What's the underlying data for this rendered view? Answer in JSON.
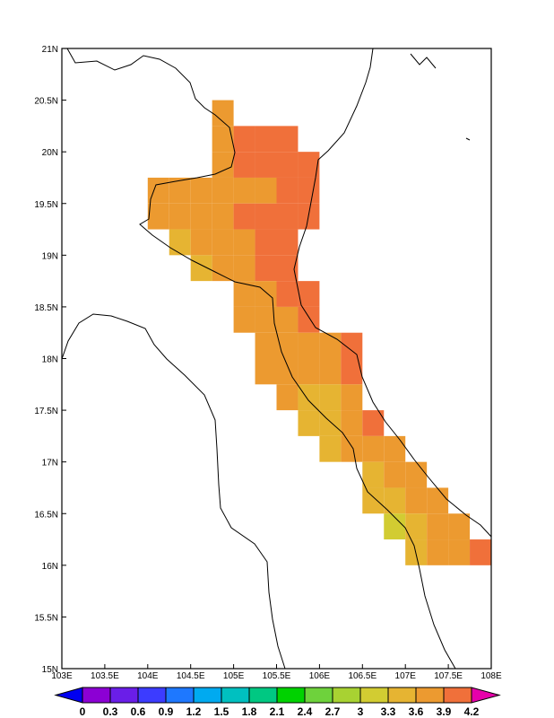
{
  "chart_data": {
    "type": "grid-map",
    "xlim": [
      103,
      108
    ],
    "ylim": [
      15,
      21
    ],
    "xticks": [
      {
        "value": 103,
        "label": "103E"
      },
      {
        "value": 103.5,
        "label": "103.5E"
      },
      {
        "value": 104,
        "label": "104E"
      },
      {
        "value": 104.5,
        "label": "104.5E"
      },
      {
        "value": 105,
        "label": "105E"
      },
      {
        "value": 105.5,
        "label": "105.5E"
      },
      {
        "value": 106,
        "label": "106E"
      },
      {
        "value": 106.5,
        "label": "106.5E"
      },
      {
        "value": 107,
        "label": "107E"
      },
      {
        "value": 107.5,
        "label": "107.5E"
      },
      {
        "value": 108,
        "label": "108E"
      }
    ],
    "yticks": [
      {
        "value": 15,
        "label": "15N"
      },
      {
        "value": 15.5,
        "label": "15.5N"
      },
      {
        "value": 16,
        "label": "16N"
      },
      {
        "value": 16.5,
        "label": "16.5N"
      },
      {
        "value": 17,
        "label": "17N"
      },
      {
        "value": 17.5,
        "label": "17.5N"
      },
      {
        "value": 18,
        "label": "18N"
      },
      {
        "value": 18.5,
        "label": "18.5N"
      },
      {
        "value": 19,
        "label": "19N"
      },
      {
        "value": 19.5,
        "label": "19.5N"
      },
      {
        "value": 20,
        "label": "20N"
      },
      {
        "value": 20.5,
        "label": "20.5N"
      },
      {
        "value": 21,
        "label": "21N"
      }
    ],
    "rows": [
      {
        "lat": 20.25,
        "lons": [
          104.75
        ],
        "values": [
          3.75
        ]
      },
      {
        "lat": 20.0,
        "lons": [
          104.75,
          105,
          105.25,
          105.5
        ],
        "values": [
          3.75,
          4.05,
          4.05,
          4.05
        ]
      },
      {
        "lat": 19.75,
        "lons": [
          104.75,
          105,
          105.25,
          105.5,
          105.75
        ],
        "values": [
          3.75,
          4.05,
          4.05,
          4.05,
          4.05
        ]
      },
      {
        "lat": 19.5,
        "lons": [
          104,
          104.25,
          104.5,
          104.75,
          105,
          105.25,
          105.5,
          105.75
        ],
        "values": [
          3.75,
          3.75,
          3.75,
          3.75,
          3.75,
          3.75,
          4.05,
          4.05
        ]
      },
      {
        "lat": 19.25,
        "lons": [
          104,
          104.25,
          104.5,
          104.75,
          105,
          105.25,
          105.5,
          105.75
        ],
        "values": [
          3.75,
          3.75,
          3.75,
          3.75,
          4.05,
          4.05,
          4.05,
          4.05
        ]
      },
      {
        "lat": 19.0,
        "lons": [
          104.25,
          104.5,
          104.75,
          105,
          105.25,
          105.5
        ],
        "values": [
          3.45,
          3.75,
          3.75,
          3.75,
          4.05,
          4.05
        ]
      },
      {
        "lat": 18.75,
        "lons": [
          104.5,
          104.75,
          105,
          105.25,
          105.5
        ],
        "values": [
          3.45,
          3.75,
          3.75,
          4.05,
          4.05
        ]
      },
      {
        "lat": 18.5,
        "lons": [
          105,
          105.25,
          105.5,
          105.75
        ],
        "values": [
          3.75,
          3.75,
          4.05,
          4.05
        ]
      },
      {
        "lat": 18.25,
        "lons": [
          105,
          105.25,
          105.5,
          105.75
        ],
        "values": [
          3.75,
          3.75,
          3.75,
          4.05
        ]
      },
      {
        "lat": 18.0,
        "lons": [
          105.25,
          105.5,
          105.75,
          106,
          106.25
        ],
        "values": [
          3.75,
          3.75,
          3.75,
          3.75,
          4.05
        ]
      },
      {
        "lat": 17.75,
        "lons": [
          105.25,
          105.5,
          105.75,
          106,
          106.25
        ],
        "values": [
          3.75,
          3.75,
          3.75,
          3.75,
          4.05
        ]
      },
      {
        "lat": 17.5,
        "lons": [
          105.5,
          105.75,
          106,
          106.25
        ],
        "values": [
          3.75,
          3.45,
          3.45,
          3.75
        ]
      },
      {
        "lat": 17.25,
        "lons": [
          105.75,
          106,
          106.25,
          106.5
        ],
        "values": [
          3.45,
          3.45,
          3.75,
          4.05
        ]
      },
      {
        "lat": 17.0,
        "lons": [
          106,
          106.25,
          106.5,
          106.75
        ],
        "values": [
          3.45,
          3.75,
          3.75,
          3.75
        ]
      },
      {
        "lat": 16.75,
        "lons": [
          106.5,
          106.75,
          107
        ],
        "values": [
          3.45,
          3.75,
          3.75
        ]
      },
      {
        "lat": 16.5,
        "lons": [
          106.5,
          106.75,
          107,
          107.25
        ],
        "values": [
          3.45,
          3.45,
          3.75,
          3.75
        ]
      },
      {
        "lat": 16.25,
        "lons": [
          106.75,
          107,
          107.25,
          107.5
        ],
        "values": [
          3.15,
          3.45,
          3.75,
          3.75
        ]
      },
      {
        "lat": 16.0,
        "lons": [
          107,
          107.25,
          107.5,
          107.75
        ],
        "values": [
          3.45,
          3.75,
          3.75,
          4.05
        ]
      }
    ],
    "colorbar": {
      "levels": [
        0,
        0.3,
        0.6,
        0.9,
        1.2,
        1.5,
        1.8,
        2.1,
        2.4,
        2.7,
        3,
        3.3,
        3.6,
        3.9,
        4.2
      ],
      "colors": [
        "#0000f0",
        "#8c00d4",
        "#6a1ee8",
        "#3c3cff",
        "#1e78ff",
        "#00aaf0",
        "#00c0c0",
        "#00c882",
        "#00d200",
        "#6ed23c",
        "#a8d232",
        "#d2cc32",
        "#e6b432",
        "#ec9a30",
        "#f0703a",
        "#f5374b",
        "#e600aa"
      ]
    }
  }
}
